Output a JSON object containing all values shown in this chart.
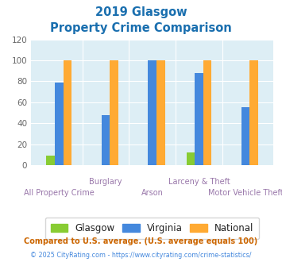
{
  "title_line1": "2019 Glasgow",
  "title_line2": "Property Crime Comparison",
  "title_color": "#1a6faf",
  "categories": [
    "All Property Crime",
    "Burglary",
    "Arson",
    "Larceny & Theft",
    "Motor Vehicle Theft"
  ],
  "glasgow_values": [
    9,
    0,
    0,
    12,
    0
  ],
  "virginia_values": [
    79,
    48,
    100,
    88,
    55
  ],
  "national_values": [
    100,
    100,
    100,
    100,
    100
  ],
  "glasgow_color": "#88cc33",
  "virginia_color": "#4488dd",
  "national_color": "#ffaa33",
  "ylim": [
    0,
    120
  ],
  "yticks": [
    0,
    20,
    40,
    60,
    80,
    100,
    120
  ],
  "legend_labels": [
    "Glasgow",
    "Virginia",
    "National"
  ],
  "footnote1": "Compared to U.S. average. (U.S. average equals 100)",
  "footnote2": "© 2025 CityRating.com - https://www.cityrating.com/crime-statistics/",
  "footnote1_color": "#cc6600",
  "footnote2_color": "#4488dd",
  "bg_color": "#ffffff",
  "plot_bg_color": "#ddeef5",
  "x_label_color": "#9977aa",
  "x_label_fontsize": 7.0,
  "bar_width": 0.18,
  "ytick_fontsize": 7.5,
  "legend_text_color": "#222222"
}
